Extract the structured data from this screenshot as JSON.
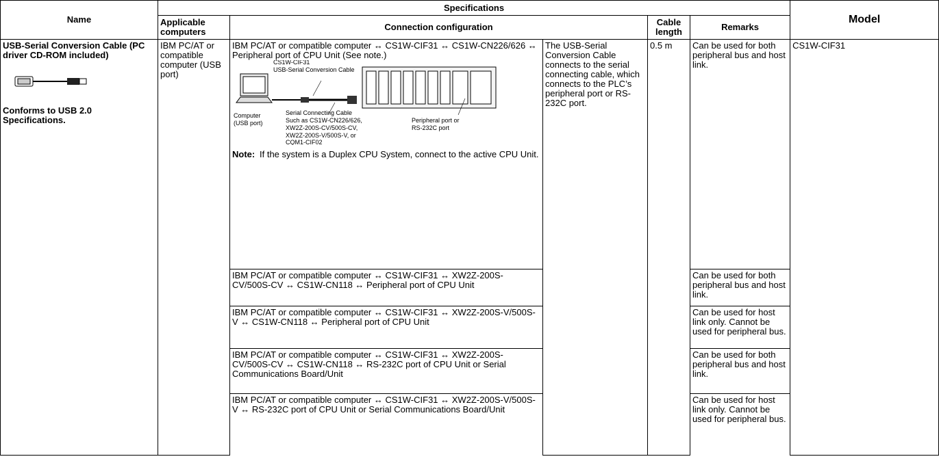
{
  "table": {
    "header": {
      "name": "Name",
      "specifications": "Specifications",
      "model": "Model",
      "applicable_computers": "Applicable computers",
      "connection_configuration": "Connection configuration",
      "cable_length": "Cable length",
      "remarks": "Remarks"
    },
    "product": {
      "name": "USB-Serial Conversion Cable (PC driver CD-ROM included)",
      "conformance": "Conforms to USB 2.0 Specifications.",
      "applicable_computers": "IBM PC/AT or compatible computer (USB port)",
      "description": "The USB-Serial Conversion Cable connects to the serial connecting cable, which connects to the PLC’s peripheral port or RS-232C port.",
      "cable_length": "0.5 m",
      "model": "CS1W-CIF31"
    },
    "rows": [
      {
        "connection": "IBM PC/AT or compatible computer ↔ CS1W-CIF31 ↔ CS1W-CN226/626 ↔ Peripheral port of CPU Unit (See note.)",
        "remarks": "Can be used for both peripheral bus and host link."
      },
      {
        "connection": "IBM PC/AT or compatible computer ↔ CS1W-CIF31 ↔ XW2Z-200S-CV/500S-CV ↔ CS1W-CN118 ↔ Peripheral port of CPU Unit",
        "remarks": "Can be used for both peripheral bus and host link."
      },
      {
        "connection": "IBM PC/AT or compatible computer ↔ CS1W-CIF31 ↔ XW2Z-200S-V/500S-V ↔ CS1W-CN118 ↔ Peripheral port of CPU Unit",
        "remarks": "Can be used for host link only. Cannot be used for peripheral bus."
      },
      {
        "connection": "IBM PC/AT or compatible computer ↔ CS1W-CIF31 ↔ XW2Z-200S-CV/500S-CV ↔ CS1W-CN118 ↔ RS-232C port of CPU Unit or Serial Communications Board/Unit",
        "remarks": "Can be used for both peripheral bus and host link."
      },
      {
        "connection": "IBM PC/AT or compatible computer ↔ CS1W-CIF31 ↔ XW2Z-200S-V/500S-V ↔ RS-232C port of CPU Unit or Serial Communications Board/Unit",
        "remarks": "Can be used for host link only. Cannot be used for peripheral bus."
      }
    ],
    "diagram": {
      "usb_cable": [
        "CS1W-CIF31",
        "USB-Serial Conversion Cable"
      ],
      "computer": [
        "Computer",
        "(USB port)"
      ],
      "serial_cable": [
        "Serial Connecting Cable",
        "Such as CS1W-CN226/626,",
        "XW2Z-200S-CV/500S-CV,",
        "XW2Z-200S-V/500S-V, or",
        "CQM1-CIF02"
      ],
      "port": [
        "Peripheral port or",
        "RS-232C port"
      ]
    },
    "note": {
      "label": "Note:",
      "text": "If the system is a Duplex CPU System, connect to the active CPU Unit."
    }
  }
}
